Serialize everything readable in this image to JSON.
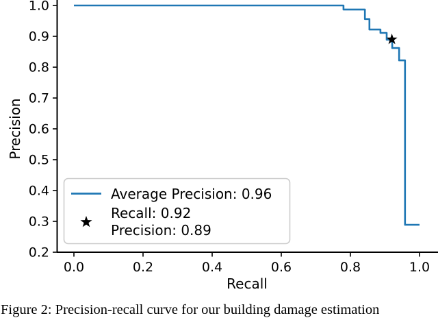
{
  "figure_caption": "Figure 2: Precision-recall curve for our building damage estimation",
  "chart_data": {
    "type": "line",
    "title": "",
    "xlabel": "Recall",
    "ylabel": "Precision",
    "xlim": [
      -0.05,
      1.05
    ],
    "ylim": [
      0.2,
      1.02
    ],
    "x_ticks": [
      0.0,
      0.2,
      0.4,
      0.6,
      0.8,
      1.0
    ],
    "y_ticks": [
      0.2,
      0.3,
      0.4,
      0.5,
      0.6,
      0.7,
      0.8,
      0.9,
      1.0
    ],
    "grid": false,
    "legend_position": "lower left",
    "line_color": "#1f77b4",
    "marker_color": "#000000",
    "series": [
      {
        "type": "step",
        "color": "#1f77b4",
        "points": [
          [
            0.0,
            1.0
          ],
          [
            0.78,
            1.0
          ],
          [
            0.78,
            0.987
          ],
          [
            0.842,
            0.987
          ],
          [
            0.842,
            0.956
          ],
          [
            0.855,
            0.956
          ],
          [
            0.855,
            0.922
          ],
          [
            0.887,
            0.922
          ],
          [
            0.887,
            0.911
          ],
          [
            0.905,
            0.911
          ],
          [
            0.905,
            0.889
          ],
          [
            0.921,
            0.889
          ],
          [
            0.921,
            0.862
          ],
          [
            0.941,
            0.862
          ],
          [
            0.941,
            0.822
          ],
          [
            0.958,
            0.822
          ],
          [
            0.958,
            0.289
          ],
          [
            1.0,
            0.289
          ]
        ]
      },
      {
        "type": "scatter",
        "marker": "star",
        "color": "#000000",
        "points": [
          [
            0.92,
            0.89
          ]
        ]
      }
    ],
    "legend": {
      "entries": [
        {
          "marker": "line",
          "label": "Average Precision: 0.96"
        },
        {
          "marker": "star",
          "label_line1": "Recall: 0.92",
          "label_line2": "Precision: 0.89"
        }
      ]
    }
  }
}
